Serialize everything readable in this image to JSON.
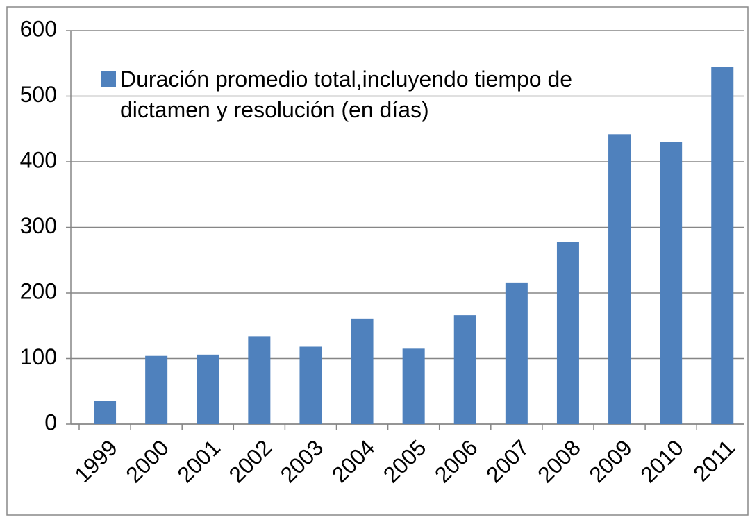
{
  "chart_data": {
    "type": "bar",
    "categories": [
      "1999",
      "2000",
      "2001",
      "2002",
      "2003",
      "2004",
      "2005",
      "2006",
      "2007",
      "2008",
      "2009",
      "2010",
      "2011"
    ],
    "series": [
      {
        "name": "Duración promedio total,incluyendo tiempo de dictamen y resolución (en días)",
        "color": "#4f81bd",
        "values": [
          35,
          104,
          106,
          134,
          118,
          161,
          115,
          166,
          216,
          278,
          442,
          430,
          544
        ]
      }
    ],
    "ylim": [
      0,
      600
    ],
    "yticks": [
      0,
      100,
      200,
      300,
      400,
      500,
      600
    ],
    "grid": true,
    "legend": "top-left"
  }
}
